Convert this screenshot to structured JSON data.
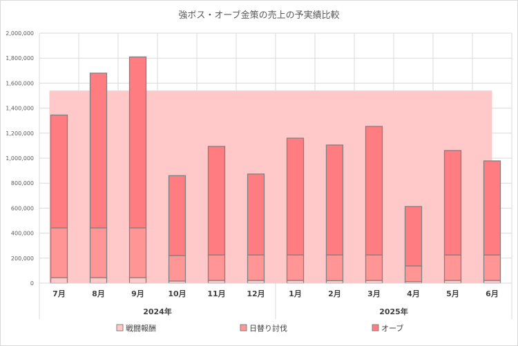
{
  "chart_data": {
    "type": "bar",
    "stacked": true,
    "title": "強ボス・オーブ金策の売上の予実績比較",
    "categories": [
      "7月",
      "8月",
      "9月",
      "10月",
      "11月",
      "12月",
      "1月",
      "2月",
      "3月",
      "4月",
      "5月",
      "6月"
    ],
    "year_groups": [
      {
        "label": "2024年",
        "categories": [
          "7月",
          "8月",
          "9月",
          "10月",
          "11月",
          "12月"
        ]
      },
      {
        "label": "2025年",
        "categories": [
          "1月",
          "2月",
          "3月",
          "4月",
          "5月",
          "6月"
        ]
      }
    ],
    "series": [
      {
        "name": "戦闘報酬",
        "color": "#ffc7c7",
        "values": [
          44000,
          44000,
          44000,
          17000,
          22000,
          22000,
          22000,
          20000,
          22000,
          12000,
          22000,
          22000
        ]
      },
      {
        "name": "日替り討伐",
        "color": "#ff9595",
        "values": [
          398000,
          398000,
          398000,
          204000,
          204000,
          204000,
          204000,
          206000,
          204000,
          126000,
          204000,
          204000
        ]
      },
      {
        "name": "オーブ",
        "color": "#ff7c80",
        "values": [
          903000,
          1238000,
          1368000,
          639000,
          868000,
          647000,
          934000,
          879000,
          1028000,
          475000,
          835000,
          752000
        ]
      }
    ],
    "budget_area": {
      "value": 1541000,
      "color": "#ffc9c9"
    },
    "ylim": [
      0,
      2000000
    ],
    "ytick_step": 200000,
    "yticks": [
      "0",
      "200,000",
      "400,000",
      "600,000",
      "800,000",
      "1,000,000",
      "1,200,000",
      "1,400,000",
      "1,600,000",
      "1,800,000",
      "2,000,000"
    ],
    "grid": true,
    "legend_position": "bottom"
  }
}
